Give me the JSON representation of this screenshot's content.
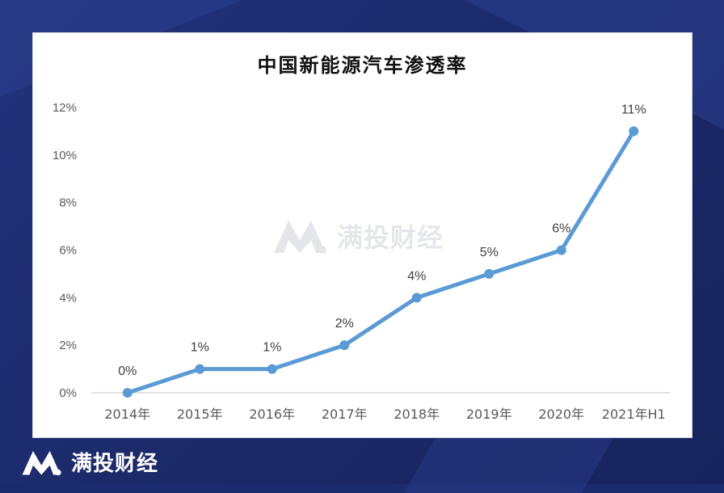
{
  "brand": {
    "name": "满投财经",
    "watermark": "满投财经"
  },
  "colors": {
    "line": "#5b9bd5",
    "axis": "#d9d9d9",
    "background": "#1c2a6e"
  },
  "chart_data": {
    "type": "line",
    "title": "中国新能源汽车渗透率",
    "xlabel": "",
    "ylabel": "",
    "categories": [
      "2014年",
      "2015年",
      "2016年",
      "2017年",
      "2018年",
      "2019年",
      "2020年",
      "2021年H1"
    ],
    "series": [
      {
        "values": [
          0,
          1,
          1,
          2,
          4,
          5,
          6,
          11
        ]
      }
    ],
    "data_labels": [
      "0%",
      "1%",
      "1%",
      "2%",
      "4%",
      "5%",
      "6%",
      "11%"
    ],
    "ylim": [
      0,
      12
    ],
    "yticks": [
      "0%",
      "2%",
      "4%",
      "6%",
      "8%",
      "10%",
      "12%"
    ],
    "grid": false,
    "legend": "none"
  }
}
